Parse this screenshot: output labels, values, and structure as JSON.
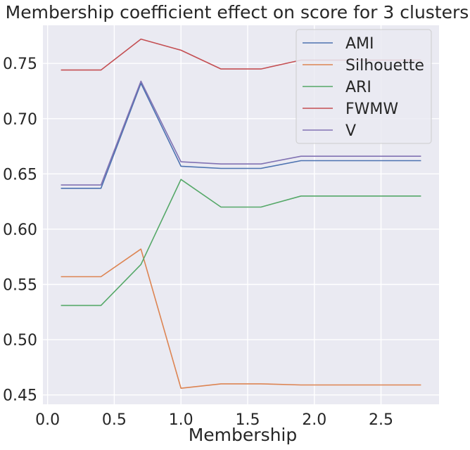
{
  "chart_data": {
    "type": "line",
    "title": "Membership coefficient effect on score for 3 clusters",
    "xlabel": "Membership",
    "ylabel": "",
    "x": [
      0.1,
      0.4,
      0.7,
      1.0,
      1.3,
      1.6,
      1.9,
      2.2,
      2.5,
      2.8
    ],
    "xlim": [
      -0.035,
      2.935
    ],
    "ylim": [
      0.4415,
      0.7845
    ],
    "xticks": [
      0.0,
      0.5,
      1.0,
      1.5,
      2.0,
      2.5
    ],
    "xtick_labels": [
      "0.0",
      "0.5",
      "1.0",
      "1.5",
      "2.0",
      "2.5"
    ],
    "yticks": [
      0.45,
      0.5,
      0.55,
      0.6,
      0.65,
      0.7,
      0.75
    ],
    "ytick_labels": [
      "0.45",
      "0.50",
      "0.55",
      "0.60",
      "0.65",
      "0.70",
      "0.75"
    ],
    "grid": true,
    "legend_position": "top-right",
    "series": [
      {
        "name": "AMI",
        "color": "#4c72b0",
        "values": [
          0.637,
          0.637,
          0.732,
          0.657,
          0.655,
          0.655,
          0.662,
          0.662,
          0.662,
          0.662
        ]
      },
      {
        "name": "Silhouette",
        "color": "#dd8452",
        "values": [
          0.557,
          0.557,
          0.582,
          0.456,
          0.46,
          0.46,
          0.459,
          0.459,
          0.459,
          0.459
        ]
      },
      {
        "name": "ARI",
        "color": "#55a868",
        "values": [
          0.531,
          0.531,
          0.568,
          0.645,
          0.62,
          0.62,
          0.63,
          0.63,
          0.63,
          0.63
        ]
      },
      {
        "name": "FWMW",
        "color": "#c44e52",
        "values": [
          0.744,
          0.744,
          0.772,
          0.762,
          0.745,
          0.745,
          0.753,
          0.753,
          0.753,
          0.753
        ]
      },
      {
        "name": "V",
        "color": "#8172b3",
        "values": [
          0.64,
          0.64,
          0.734,
          0.661,
          0.659,
          0.659,
          0.666,
          0.666,
          0.666,
          0.666
        ]
      }
    ]
  }
}
